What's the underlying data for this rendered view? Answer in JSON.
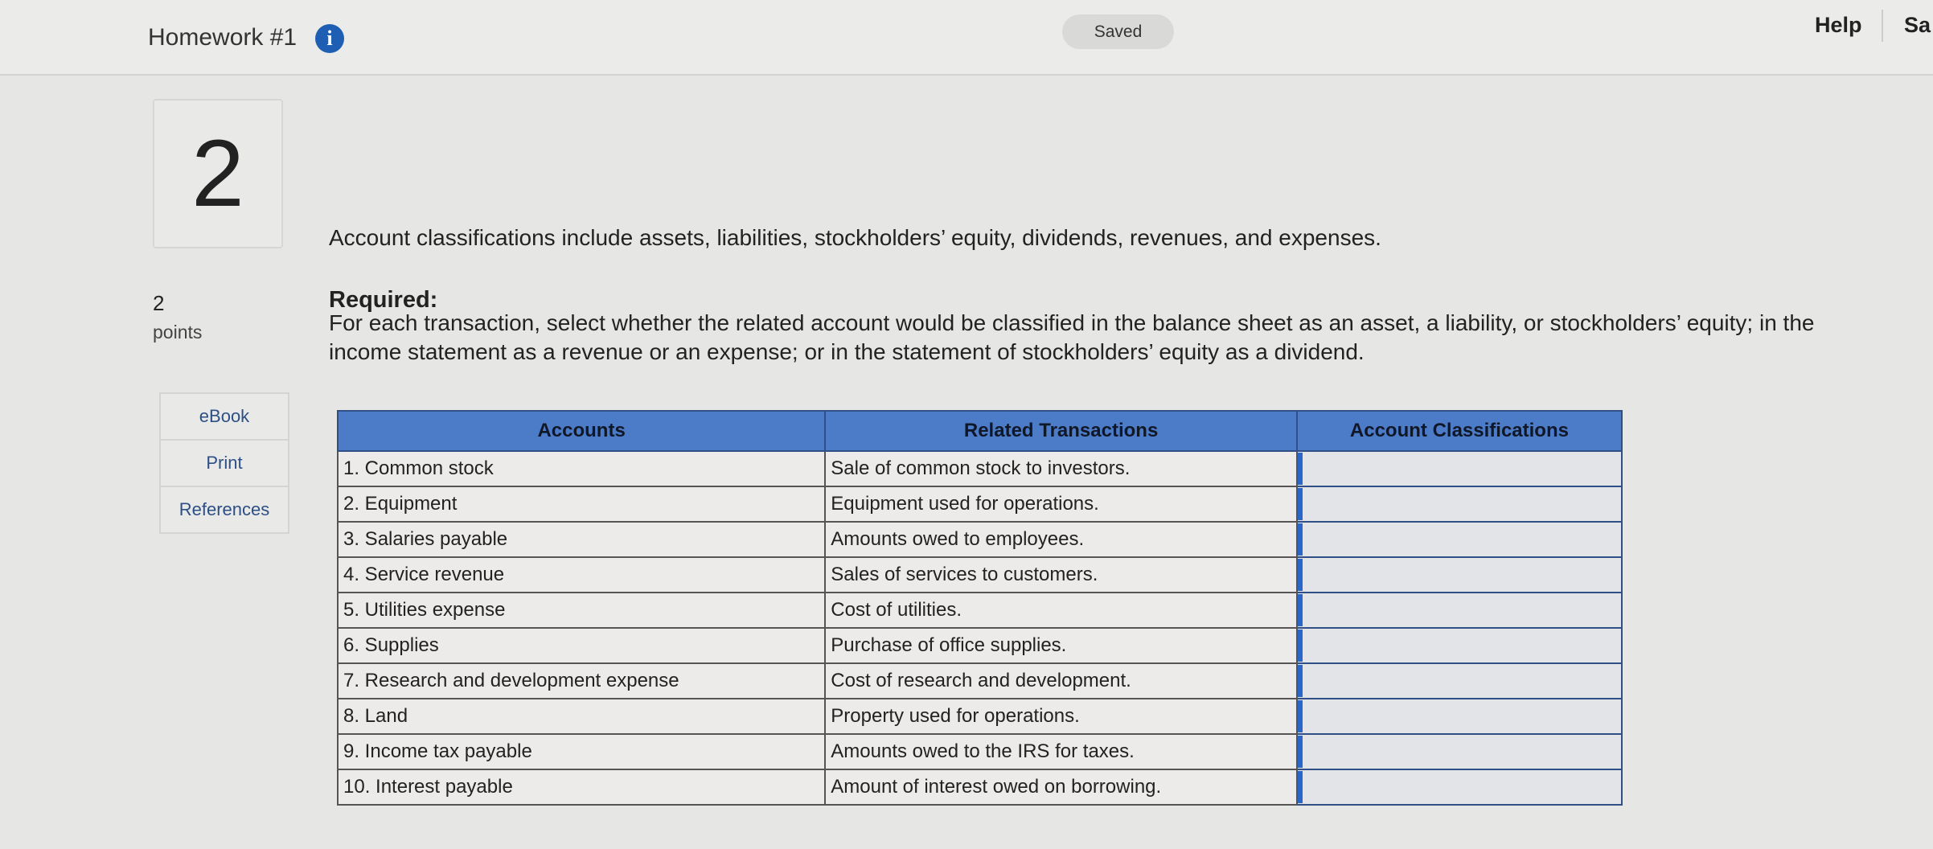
{
  "header": {
    "title": "Homework #1",
    "status": "Saved",
    "help": "Help",
    "save": "Sa"
  },
  "question": {
    "number": "2",
    "points_value": "2",
    "points_label": "points",
    "nav": [
      "eBook",
      "Print",
      "References"
    ],
    "intro": "Account classifications include assets, liabilities, stockholders’ equity, dividends, revenues, and expenses.",
    "required_label": "Required:",
    "instruction": "For each transaction, select whether the related account would be classified in the balance sheet as an asset, a liability, or stockholders’ equity; in the income statement as a revenue or an expense; or in the statement of stockholders’ equity as a dividend."
  },
  "table": {
    "headers": [
      "Accounts",
      "Related Transactions",
      "Account Classifications"
    ],
    "rows": [
      [
        "1. Common stock",
        "Sale of common stock to investors."
      ],
      [
        "2. Equipment",
        "Equipment used for operations."
      ],
      [
        "3. Salaries payable",
        "Amounts owed to employees."
      ],
      [
        "4. Service revenue",
        "Sales of services to customers."
      ],
      [
        "5. Utilities expense",
        "Cost of utilities."
      ],
      [
        "6. Supplies",
        "Purchase of office supplies."
      ],
      [
        "7. Research and development expense",
        "Cost of research and development."
      ],
      [
        "8. Land",
        "Property used for operations."
      ],
      [
        "9. Income tax payable",
        "Amounts owed to the IRS for taxes."
      ],
      [
        "10. Interest payable",
        "Amount of interest owed on borrowing."
      ]
    ]
  }
}
